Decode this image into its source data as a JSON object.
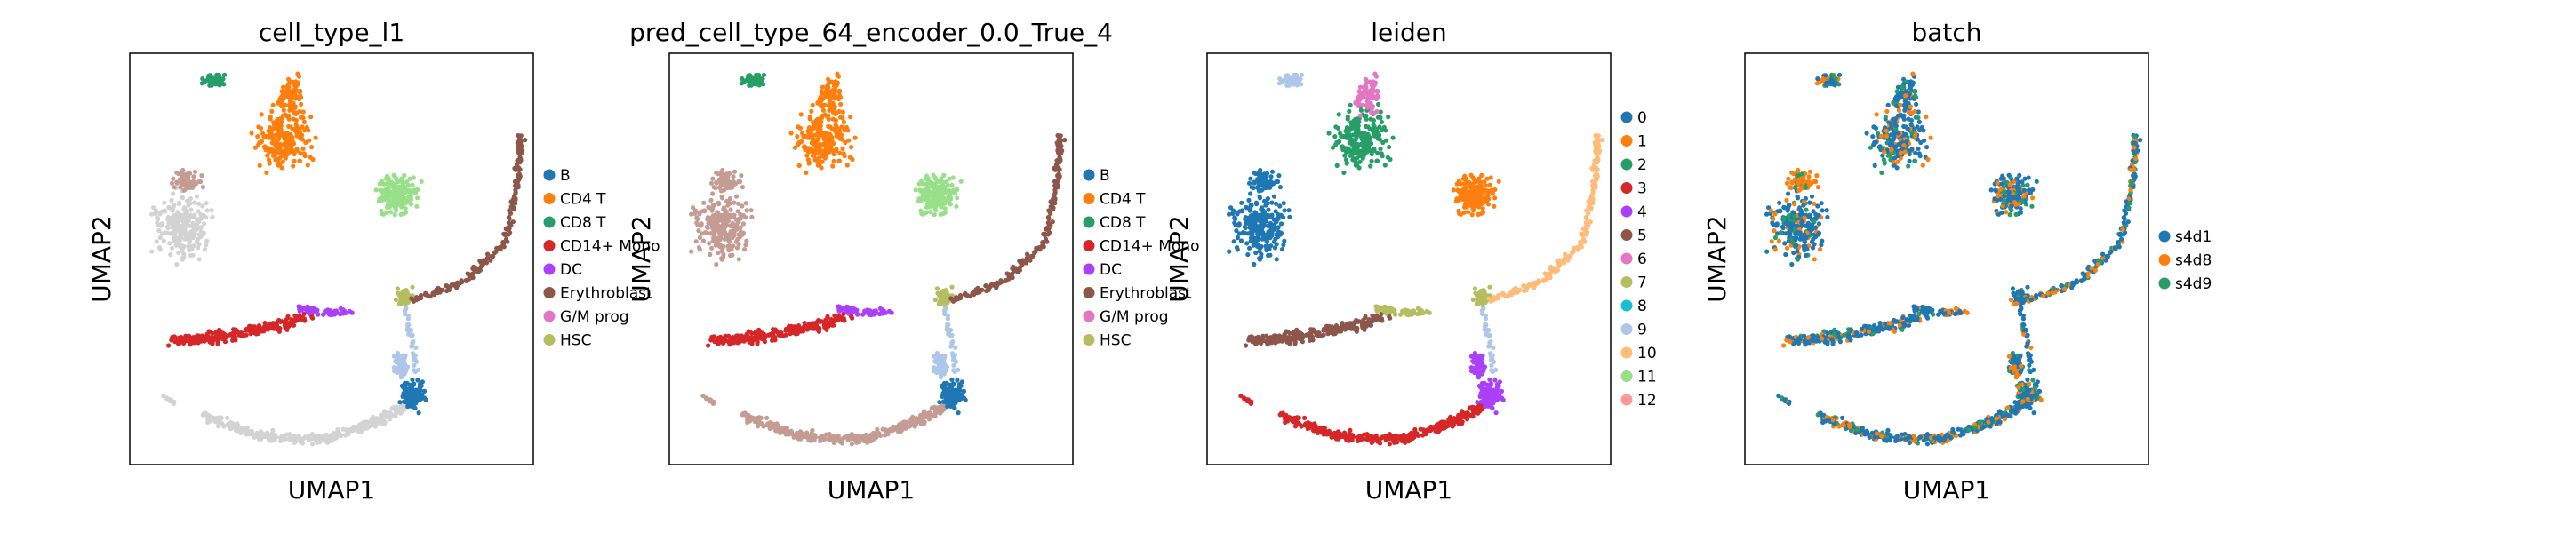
{
  "chart_data": [
    {
      "type": "scatter",
      "title": "cell_type_l1",
      "xlabel": "UMAP1",
      "ylabel": "UMAP2",
      "legend": "right",
      "categories": [
        "B",
        "CD4 T",
        "CD8 T",
        "CD14+ Mono",
        "DC",
        "Erythroblast",
        "G/M prog",
        "HSC"
      ],
      "colors": [
        "#1f77b4",
        "#ff7f0e",
        "#279e68",
        "#d62728",
        "#aa40fc",
        "#8c564b",
        "#e377c2",
        "#b5bd61"
      ],
      "extra_colors": {
        "unlabeled": "#d3d3d3",
        "lightgreen": "#98df8a",
        "lightblue": "#aec7e8",
        "lightbrown": "#c49c94"
      },
      "palette_style": "truth"
    },
    {
      "type": "scatter",
      "title": "pred_cell_type_64_encoder_0.0_True_4",
      "xlabel": "UMAP1",
      "ylabel": "UMAP2",
      "legend": "right",
      "categories": [
        "B",
        "CD4 T",
        "CD8 T",
        "CD14+ Mono",
        "DC",
        "Erythroblast",
        "G/M prog",
        "HSC"
      ],
      "colors": [
        "#1f77b4",
        "#ff7f0e",
        "#279e68",
        "#d62728",
        "#aa40fc",
        "#8c564b",
        "#e377c2",
        "#b5bd61"
      ],
      "extra_colors": {
        "lightgreen": "#98df8a",
        "lightbrown": "#c49c94"
      },
      "palette_style": "pred"
    },
    {
      "type": "scatter",
      "title": "leiden",
      "xlabel": "UMAP1",
      "ylabel": "UMAP2",
      "legend": "right",
      "categories": [
        "0",
        "1",
        "2",
        "3",
        "4",
        "5",
        "6",
        "7",
        "8",
        "9",
        "10",
        "11",
        "12"
      ],
      "colors": [
        "#1f77b4",
        "#ff7f0e",
        "#279e68",
        "#d62728",
        "#aa40fc",
        "#8c564b",
        "#e377c2",
        "#b5bd61",
        "#17becf",
        "#aec7e8",
        "#ffbb78",
        "#98df8a",
        "#ff9896"
      ],
      "palette_style": "leiden"
    },
    {
      "type": "scatter",
      "title": "batch",
      "xlabel": "UMAP1",
      "ylabel": "UMAP2",
      "legend": "right",
      "categories": [
        "s4d1",
        "s4d8",
        "s4d9"
      ],
      "colors": [
        "#1f77b4",
        "#ff7f0e",
        "#279e68"
      ],
      "palette_style": "batch"
    }
  ]
}
